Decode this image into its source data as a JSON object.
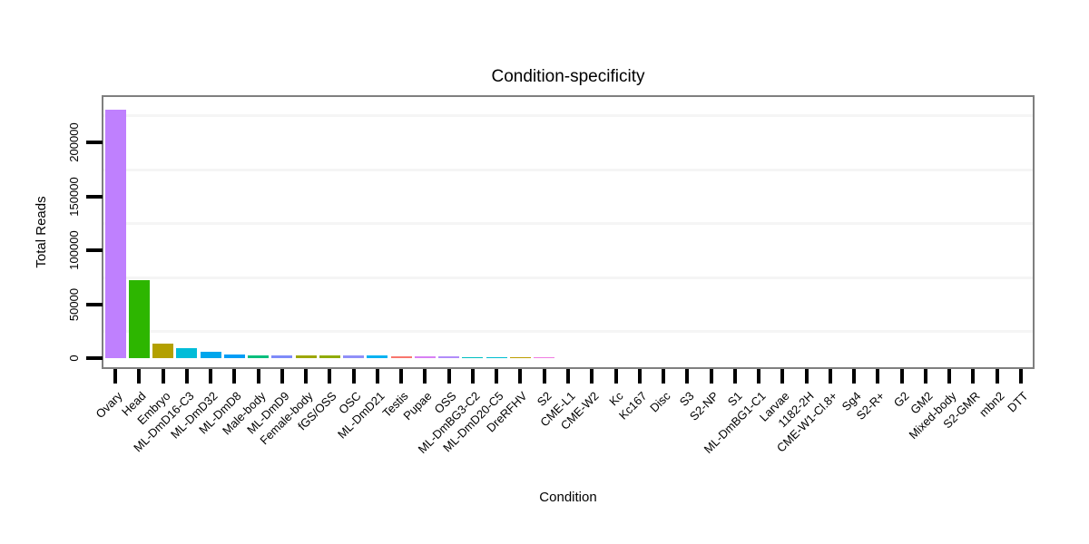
{
  "title": "Condition-specificity",
  "x_axis_label": "Condition",
  "y_axis_label": "Total Reads",
  "chart_data": {
    "type": "bar",
    "title": "Condition-specificity",
    "xlabel": "Condition",
    "ylabel": "Total Reads",
    "ylim": [
      0,
      240000
    ],
    "yticks": [
      0,
      50000,
      100000,
      150000,
      200000
    ],
    "ytick_labels": [
      "0",
      "50000",
      "100000",
      "150000",
      "200000"
    ],
    "minor_gridlines": [
      25000,
      75000,
      125000,
      175000,
      225000
    ],
    "grid": "faint horizontal minor gridlines on white panel, gray panel border, long black tick marks",
    "legend": "none",
    "bar_sort": "descending by value",
    "categories": [
      "Ovary",
      "Head",
      "Embryo",
      "ML-DmD16-C3",
      "ML-DmD32",
      "ML-DmD8",
      "Male-body",
      "ML-DmD9",
      "Female-body",
      "fGS/OSS",
      "OSC",
      "ML-DmD21",
      "Testis",
      "Pupae",
      "OSS",
      "ML-DmBG3-C2",
      "ML-DmD20-C5",
      "DreRFHV",
      "S2",
      "CME-L1",
      "CME-W2",
      "Kc",
      "Kc167",
      "Disc",
      "S3",
      "S2-NP",
      "S1",
      "ML-DmBG1-C1",
      "Larvae",
      "1182-2H",
      "CME-W1-Cl.8+",
      "Sg4",
      "S2-R+",
      "G2",
      "GM2",
      "Mixed-body",
      "S2-GMR",
      "mbn2",
      "DTT"
    ],
    "values": [
      230000,
      72000,
      13500,
      9300,
      5500,
      3600,
      2800,
      2600,
      2600,
      2500,
      2400,
      2200,
      1800,
      1400,
      1300,
      1200,
      1100,
      1000,
      900,
      0,
      0,
      0,
      0,
      0,
      0,
      0,
      0,
      0,
      0,
      0,
      0,
      0,
      0,
      0,
      0,
      0,
      0,
      0,
      0
    ],
    "bar_colors": [
      "#BF80FE",
      "#2DB600",
      "#B3A000",
      "#00BCD8",
      "#00A6EC",
      "#009DF6",
      "#00BE7C",
      "#7E8BF9",
      "#9DA700",
      "#90AB00",
      "#9090F8",
      "#00B2F2",
      "#F8766D",
      "#D880F4",
      "#B18CF9",
      "#00BFC0",
      "#00BDD0",
      "#BC9D00",
      "#F07CE1",
      null,
      null,
      null,
      null,
      null,
      null,
      null,
      null,
      null,
      null,
      null,
      null,
      null,
      null,
      null,
      null,
      null,
      null,
      null,
      null
    ]
  }
}
